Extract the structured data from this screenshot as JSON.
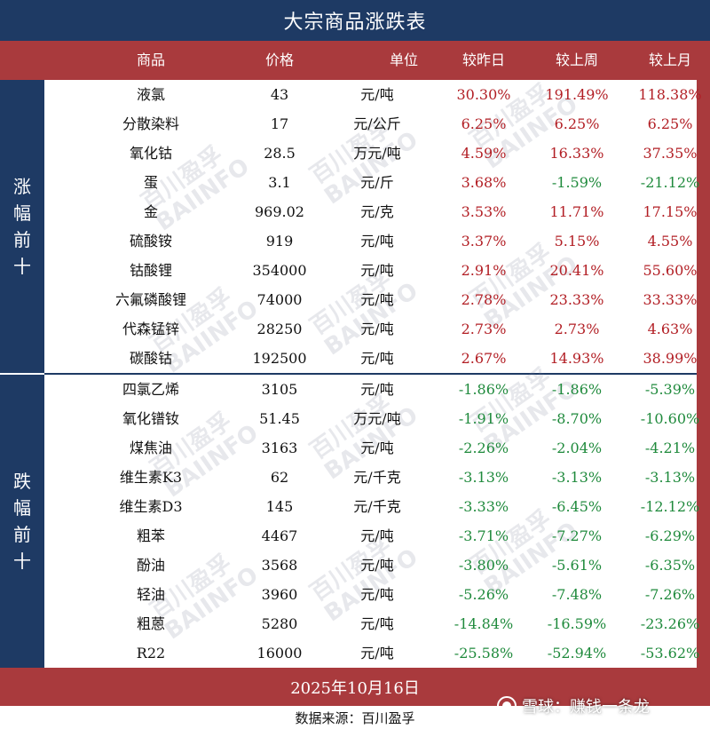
{
  "title": "大宗商品涨跌表",
  "headers": {
    "name": "商品",
    "price": "价格",
    "unit": "单位",
    "day": "较昨日",
    "week": "较上周",
    "month": "较上月"
  },
  "sections": {
    "up_label": [
      "涨",
      "幅",
      "前",
      "十"
    ],
    "down_label": [
      "跌",
      "幅",
      "前",
      "十"
    ]
  },
  "gainers": [
    {
      "name": "液氯",
      "price": "43",
      "unit": "元/吨",
      "day": "30.30%",
      "week": "191.49%",
      "month": "118.38%"
    },
    {
      "name": "分散染料",
      "price": "17",
      "unit": "元/公斤",
      "day": "6.25%",
      "week": "6.25%",
      "month": "6.25%"
    },
    {
      "name": "氧化钴",
      "price": "28.5",
      "unit": "万元/吨",
      "day": "4.59%",
      "week": "16.33%",
      "month": "37.35%"
    },
    {
      "name": "蛋",
      "price": "3.1",
      "unit": "元/斤",
      "day": "3.68%",
      "week": "-1.59%",
      "month": "-21.12%"
    },
    {
      "name": "金",
      "price": "969.02",
      "unit": "元/克",
      "day": "3.53%",
      "week": "11.71%",
      "month": "17.15%"
    },
    {
      "name": "硫酸铵",
      "price": "919",
      "unit": "元/吨",
      "day": "3.37%",
      "week": "5.15%",
      "month": "4.55%"
    },
    {
      "name": "钴酸锂",
      "price": "354000",
      "unit": "元/吨",
      "day": "2.91%",
      "week": "20.41%",
      "month": "55.60%"
    },
    {
      "name": "六氟磷酸锂",
      "price": "74000",
      "unit": "元/吨",
      "day": "2.78%",
      "week": "23.33%",
      "month": "33.33%"
    },
    {
      "name": "代森锰锌",
      "price": "28250",
      "unit": "元/吨",
      "day": "2.73%",
      "week": "2.73%",
      "month": "4.63%"
    },
    {
      "name": "碳酸钴",
      "price": "192500",
      "unit": "元/吨",
      "day": "2.67%",
      "week": "14.93%",
      "month": "38.99%"
    }
  ],
  "losers": [
    {
      "name": "四氯乙烯",
      "price": "3105",
      "unit": "元/吨",
      "day": "-1.86%",
      "week": "-1.86%",
      "month": "-5.39%"
    },
    {
      "name": "氧化镨钕",
      "price": "51.45",
      "unit": "万元/吨",
      "day": "-1.91%",
      "week": "-8.70%",
      "month": "-10.60%"
    },
    {
      "name": "煤焦油",
      "price": "3163",
      "unit": "元/吨",
      "day": "-2.26%",
      "week": "-2.04%",
      "month": "-4.21%"
    },
    {
      "name": "维生素K3",
      "price": "62",
      "unit": "元/千克",
      "day": "-3.13%",
      "week": "-3.13%",
      "month": "-3.13%"
    },
    {
      "name": "维生素D3",
      "price": "145",
      "unit": "元/千克",
      "day": "-3.33%",
      "week": "-6.45%",
      "month": "-12.12%"
    },
    {
      "name": "粗苯",
      "price": "4467",
      "unit": "元/吨",
      "day": "-3.71%",
      "week": "-7.27%",
      "month": "-6.29%"
    },
    {
      "name": "酚油",
      "price": "3568",
      "unit": "元/吨",
      "day": "-3.80%",
      "week": "-5.61%",
      "month": "-6.35%"
    },
    {
      "name": "轻油",
      "price": "3960",
      "unit": "元/吨",
      "day": "-5.26%",
      "week": "-7.48%",
      "month": "-7.26%"
    },
    {
      "name": "粗蒽",
      "price": "5280",
      "unit": "元/吨",
      "day": "-14.84%",
      "week": "-16.59%",
      "month": "-23.26%"
    },
    {
      "name": "R22",
      "price": "16000",
      "unit": "元/吨",
      "day": "-25.58%",
      "week": "-52.94%",
      "month": "-53.62%"
    }
  ],
  "date": "2025年10月16日",
  "source": "数据来源：百川盈孚",
  "watermark": {
    "cn": "百川盈孚",
    "en": "BAIINFO"
  },
  "credit": "雪球：赚钱一条龙",
  "colors": {
    "navy": "#1e3a64",
    "red": "#a93a3d",
    "up": "#b21e24",
    "down": "#1f8a3c"
  }
}
